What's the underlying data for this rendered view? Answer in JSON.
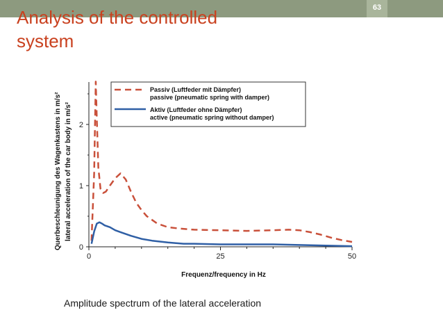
{
  "slide": {
    "title_line1": "Analysis of the controlled",
    "title_line2": "system",
    "page_number": "63",
    "caption": "Amplitude spectrum of the lateral acceleration",
    "accent_color": "#c9411f",
    "bar_color": "#8d9a7f"
  },
  "chart_data": {
    "type": "line",
    "title": "",
    "xlabel": "Frequenz/frequency in Hz",
    "ylabel_line1": "Querbeschleunigung des Wagenkastens in m/s²",
    "ylabel_line2": "lateral acceleration of the car body  in m/s²",
    "xlim": [
      0,
      50
    ],
    "ylim": [
      0,
      2.7
    ],
    "x_ticks": [
      0,
      25,
      50
    ],
    "y_ticks": [
      0,
      1,
      2
    ],
    "grid": false,
    "legend_position": "top-right",
    "series": [
      {
        "name_line1": "Passiv (Luftfeder mit Dämpfer)",
        "name_line2": "passive (pneumatic spring with damper)",
        "color": "#c9503a",
        "dash": "dashed",
        "x": [
          0.5,
          1.0,
          1.3,
          1.5,
          1.8,
          2.2,
          2.7,
          3.2,
          4.0,
          5.0,
          6.0,
          7.0,
          8.0,
          9.0,
          10.0,
          11.0,
          12.0,
          13.0,
          15.0,
          17.0,
          20.0,
          25.0,
          30.0,
          35.0,
          38.0,
          40.0,
          42.0,
          44.0,
          46.0,
          48.0,
          50.0
        ],
        "y": [
          0.1,
          1.2,
          2.7,
          2.1,
          1.3,
          0.95,
          0.88,
          0.9,
          1.0,
          1.12,
          1.2,
          1.1,
          0.9,
          0.72,
          0.6,
          0.5,
          0.44,
          0.38,
          0.32,
          0.3,
          0.28,
          0.27,
          0.26,
          0.27,
          0.28,
          0.27,
          0.24,
          0.2,
          0.15,
          0.11,
          0.08
        ]
      },
      {
        "name_line1": "Aktiv (Luftfeder ohne Dämpfer)",
        "name_line2": "active (pneumatic spring without damper)",
        "color": "#2f5fa5",
        "dash": "solid",
        "x": [
          0.5,
          1.0,
          1.5,
          2.0,
          2.5,
          3.0,
          4.0,
          5.0,
          6.0,
          8.0,
          10.0,
          12.0,
          15.0,
          18.0,
          20.0,
          25.0,
          30.0,
          35.0,
          40.0,
          45.0,
          50.0
        ],
        "y": [
          0.05,
          0.25,
          0.38,
          0.4,
          0.38,
          0.35,
          0.32,
          0.27,
          0.24,
          0.18,
          0.13,
          0.1,
          0.07,
          0.05,
          0.05,
          0.04,
          0.04,
          0.04,
          0.03,
          0.02,
          0.01
        ]
      }
    ]
  }
}
